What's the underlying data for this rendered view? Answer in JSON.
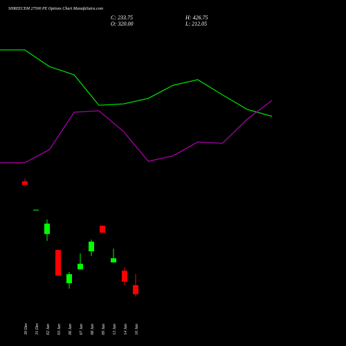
{
  "header": {
    "title": "SHREECEM 27500 PE Options Chart MunafaSutra.com",
    "close": "C: 233.75",
    "open": "O: 320.00",
    "high": "H: 426.75",
    "low": "L: 212.05"
  },
  "chart_data": [
    {
      "type": "line",
      "ylim": [
        -260,
        3040
      ],
      "categories": [
        null,
        null,
        null,
        null,
        null,
        null,
        null,
        null,
        null,
        null,
        null,
        null
      ],
      "series": [
        {
          "color": "#00dd00",
          "values": [
            2564,
            2564,
            2405,
            2326,
            2036,
            2049,
            2102,
            2227,
            2280,
            2135,
            1996,
            1930
          ]
        },
        {
          "color": "#aa00aa",
          "values": [
            1488,
            1488,
            1613,
            1970,
            1983,
            1785,
            1501,
            1554,
            1686,
            1673,
            1904,
            2082
          ]
        }
      ]
    },
    {
      "type": "candlestick",
      "ylim": [
        -260,
        3040
      ],
      "up_color": "#00ff00",
      "down_color": "#ff0000",
      "categories": [
        "30 Dec",
        "31 Dec",
        "02 Jan",
        "03 Jan",
        "06 Jan",
        "07 Jan",
        "08 Jan",
        "09 Jan",
        "13 Jan",
        "14 Jan",
        "16 Jan"
      ],
      "open": [
        1310,
        1039,
        808,
        656,
        339,
        471,
        643,
        887,
        537,
        458,
        320
      ],
      "high": [
        1336,
        1041,
        947,
        661,
        445,
        623,
        755,
        887,
        669,
        491,
        426.75
      ],
      "low": [
        1277,
        1037,
        742,
        408,
        287,
        471,
        597,
        821,
        537,
        320,
        212.05
      ],
      "close": [
        1277,
        1039,
        907,
        412,
        425,
        524,
        735,
        821,
        577,
        353,
        233.75
      ]
    }
  ]
}
